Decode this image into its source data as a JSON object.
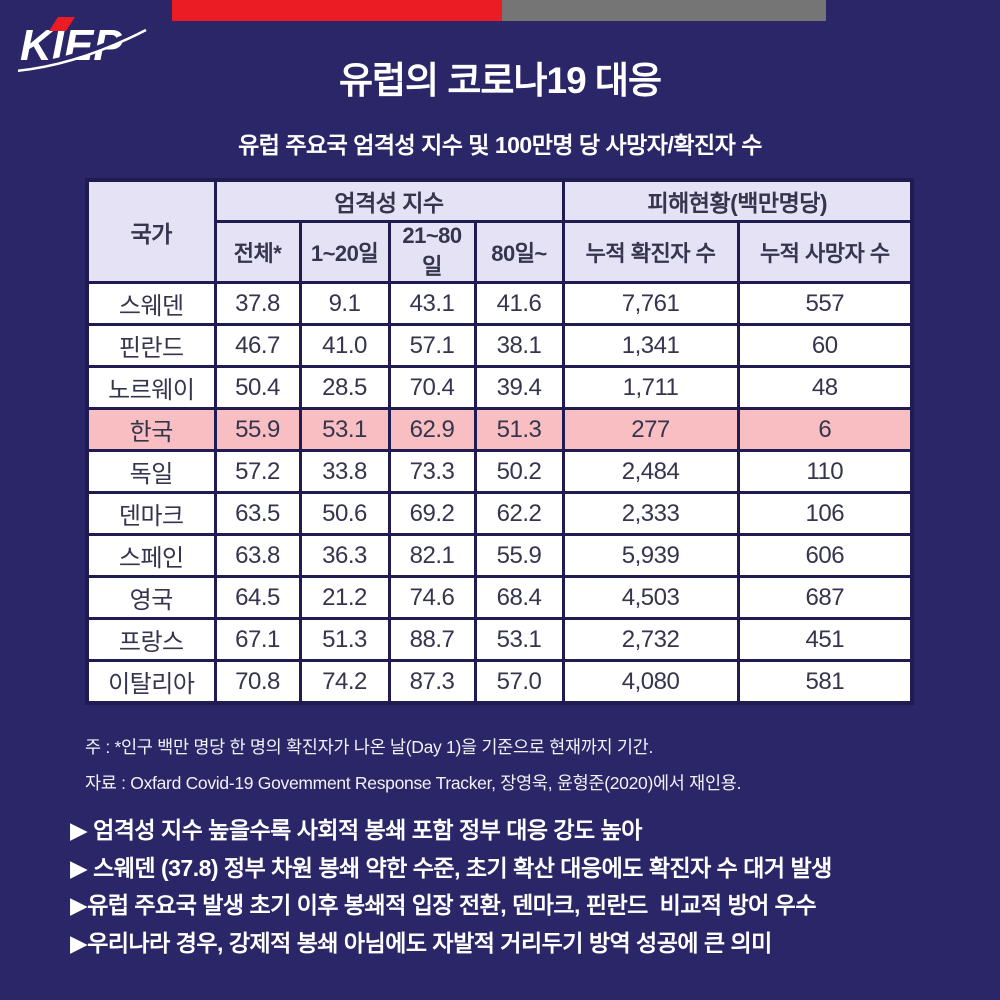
{
  "logo": {
    "text": "KIEP"
  },
  "header": {
    "title": "유럽의 코로나19 대응",
    "subtitle": "유럽 주요국 엄격성 지수 및 100만명 당 사망자/확진자 수"
  },
  "chart_data": {
    "type": "table",
    "title": "유럽의 코로나19 대응",
    "subtitle": "유럽 주요국 엄격성 지수 및 100만명 당 사망자/확진자 수",
    "column_groups": [
      "엄격성 지수",
      "피해현황(백만명당)"
    ],
    "columns": [
      "국가",
      "전체*",
      "1~20일",
      "21~80일",
      "80일~",
      "누적 확진자 수",
      "누적 사망자 수"
    ],
    "rows": [
      {
        "country": "스웨덴",
        "values": [
          "37.8",
          "9.1",
          "43.1",
          "41.6",
          "7,761",
          "557"
        ],
        "highlight": false
      },
      {
        "country": "핀란드",
        "values": [
          "46.7",
          "41.0",
          "57.1",
          "38.1",
          "1,341",
          "60"
        ],
        "highlight": false
      },
      {
        "country": "노르웨이",
        "values": [
          "50.4",
          "28.5",
          "70.4",
          "39.4",
          "1,711",
          "48"
        ],
        "highlight": false
      },
      {
        "country": "한국",
        "values": [
          "55.9",
          "53.1",
          "62.9",
          "51.3",
          "277",
          "6"
        ],
        "highlight": true
      },
      {
        "country": "독일",
        "values": [
          "57.2",
          "33.8",
          "73.3",
          "50.2",
          "2,484",
          "110"
        ],
        "highlight": false
      },
      {
        "country": "덴마크",
        "values": [
          "63.5",
          "50.6",
          "69.2",
          "62.2",
          "2,333",
          "106"
        ],
        "highlight": false
      },
      {
        "country": "스페인",
        "values": [
          "63.8",
          "36.3",
          "82.1",
          "55.9",
          "5,939",
          "606"
        ],
        "highlight": false
      },
      {
        "country": "영국",
        "values": [
          "64.5",
          "21.2",
          "74.6",
          "68.4",
          "4,503",
          "687"
        ],
        "highlight": false
      },
      {
        "country": "프랑스",
        "values": [
          "67.1",
          "51.3",
          "88.7",
          "53.1",
          "2,732",
          "451"
        ],
        "highlight": false
      },
      {
        "country": "이탈리아",
        "values": [
          "70.8",
          "74.2",
          "87.3",
          "57.0",
          "4,080",
          "581"
        ],
        "highlight": false
      }
    ],
    "highlighted_row": "한국"
  },
  "notes": {
    "note_line": "주 : *인구 백만 명당 한 명의 확진자가 나온 날(Day 1)을 기준으로 현재까지 기간.",
    "source_line": "자료 : Oxfard Covid-19 Govemment Response Tracker, 장영욱, 윤형준(2020)에서 재인용."
  },
  "bullets": [
    "▶ 엄격성 지수 높을수록 사회적 봉쇄 포함 정부 대응 강도 높아",
    "▶ 스웨덴 (37.8) 정부 차원 봉쇄 약한 수준, 초기 확산 대응에도 확진자 수 대거 발생",
    "▶유럽 주요국 발생 초기 이후 봉쇄적 입장 전환, 덴마크, 핀란드  비교적 방어 우수",
    "▶우리나라 경우, 강제적 봉쇄 아님에도 자발적 거리두기 방역 성공에 큰 의미"
  ],
  "colors": {
    "background": "#2A2667",
    "top_bar_red": "#EC1C24",
    "top_bar_gray": "#757575",
    "table_border": "#201C52",
    "header_cell_bg": "#E6E2F6",
    "highlight_row_bg": "#F9BEC2",
    "cell_bg": "#FFFFFF",
    "table_text": "#35354E",
    "logo_accent_red": "#EC1C24",
    "text_white": "#FFFFFF"
  }
}
